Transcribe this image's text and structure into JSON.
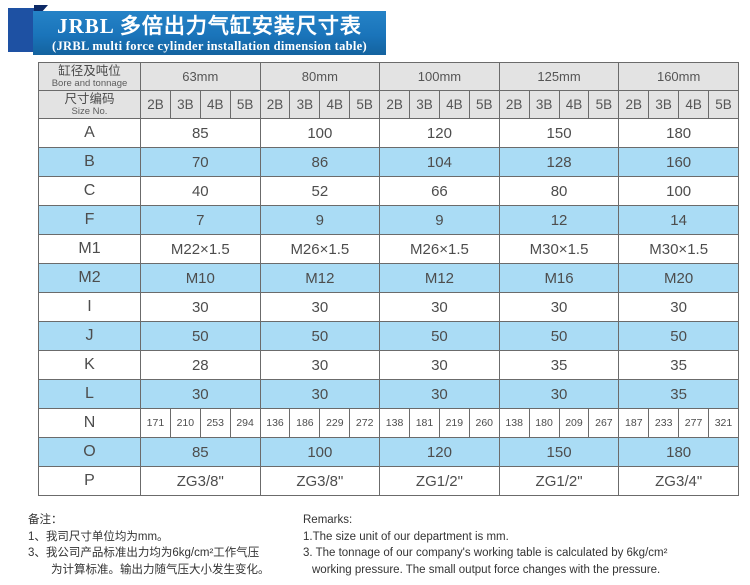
{
  "banner": {
    "title": "JRBL 多倍出力气缸安装尺寸表",
    "subtitle": "(JRBL multi force cylinder installation dimension table)"
  },
  "colors": {
    "banner_blue": "#1a74ba",
    "square_blue": "#1e51a3",
    "fold_navy": "#0d2a66",
    "header_gray": "#e3e3e3",
    "row_blue": "#aadcf5",
    "border_gray": "#6b6b6b"
  },
  "table": {
    "corner": {
      "cn": "缸径及吨位",
      "en": "Bore and tonnage"
    },
    "size_no": {
      "cn": "尺寸编码",
      "en": "Size No."
    },
    "groups": [
      "63mm",
      "80mm",
      "100mm",
      "125mm",
      "160mm"
    ],
    "sub_codes": [
      "2B",
      "3B",
      "4B",
      "5B"
    ],
    "rows": [
      {
        "label": "A",
        "shade": false,
        "values": [
          "85",
          "100",
          "120",
          "150",
          "180"
        ]
      },
      {
        "label": "B",
        "shade": true,
        "values": [
          "70",
          "86",
          "104",
          "128",
          "160"
        ]
      },
      {
        "label": "C",
        "shade": false,
        "values": [
          "40",
          "52",
          "66",
          "80",
          "100"
        ]
      },
      {
        "label": "F",
        "shade": true,
        "values": [
          "7",
          "9",
          "9",
          "12",
          "14"
        ]
      },
      {
        "label": "M1",
        "shade": false,
        "values": [
          "M22×1.5",
          "M26×1.5",
          "M26×1.5",
          "M30×1.5",
          "M30×1.5"
        ]
      },
      {
        "label": "M2",
        "shade": true,
        "values": [
          "M10",
          "M12",
          "M12",
          "M16",
          "M20"
        ]
      },
      {
        "label": "I",
        "shade": false,
        "values": [
          "30",
          "30",
          "30",
          "30",
          "30"
        ]
      },
      {
        "label": "J",
        "shade": true,
        "values": [
          "50",
          "50",
          "50",
          "50",
          "50"
        ]
      },
      {
        "label": "K",
        "shade": false,
        "values": [
          "28",
          "30",
          "30",
          "35",
          "35"
        ]
      },
      {
        "label": "L",
        "shade": true,
        "values": [
          "30",
          "30",
          "30",
          "30",
          "35"
        ]
      },
      {
        "label": "N",
        "shade": false,
        "values": [
          [
            "171",
            "210",
            "253",
            "294"
          ],
          [
            "136",
            "186",
            "229",
            "272"
          ],
          [
            "138",
            "181",
            "219",
            "260"
          ],
          [
            "138",
            "180",
            "209",
            "267"
          ],
          [
            "187",
            "233",
            "277",
            "321"
          ]
        ]
      },
      {
        "label": "O",
        "shade": true,
        "values": [
          "85",
          "100",
          "120",
          "150",
          "180"
        ]
      },
      {
        "label": "P",
        "shade": false,
        "values": [
          "ZG3/8\"",
          "ZG3/8\"",
          "ZG1/2\"",
          "ZG1/2\"",
          "ZG3/4\""
        ]
      }
    ]
  },
  "notes_cn": {
    "title": "备注：",
    "lines": [
      "1、我司尺寸单位均为mm。",
      "3、我公司产品标准出力均为6kg/cm²工作气压",
      "为计算标准。输出力随气压大小发生变化。"
    ]
  },
  "notes_en": {
    "title": "Remarks:",
    "lines": [
      "1.The size unit of our department is mm.",
      "3. The tonnage of our company's working table is calculated by 6kg/cm²",
      "working pressure. The small output force changes with the pressure."
    ]
  }
}
